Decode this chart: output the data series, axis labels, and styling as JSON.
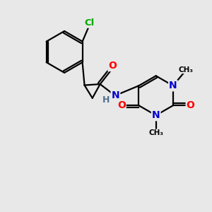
{
  "background_color": "#e8e8e8",
  "bond_color": "#000000",
  "atom_colors": {
    "O": "#ff0000",
    "N": "#0000cc",
    "Cl": "#00aa00",
    "H": "#507090",
    "C": "#000000"
  },
  "figsize": [
    3.0,
    3.0
  ],
  "dpi": 100,
  "lw": 1.6,
  "dbl_off": 0.07
}
